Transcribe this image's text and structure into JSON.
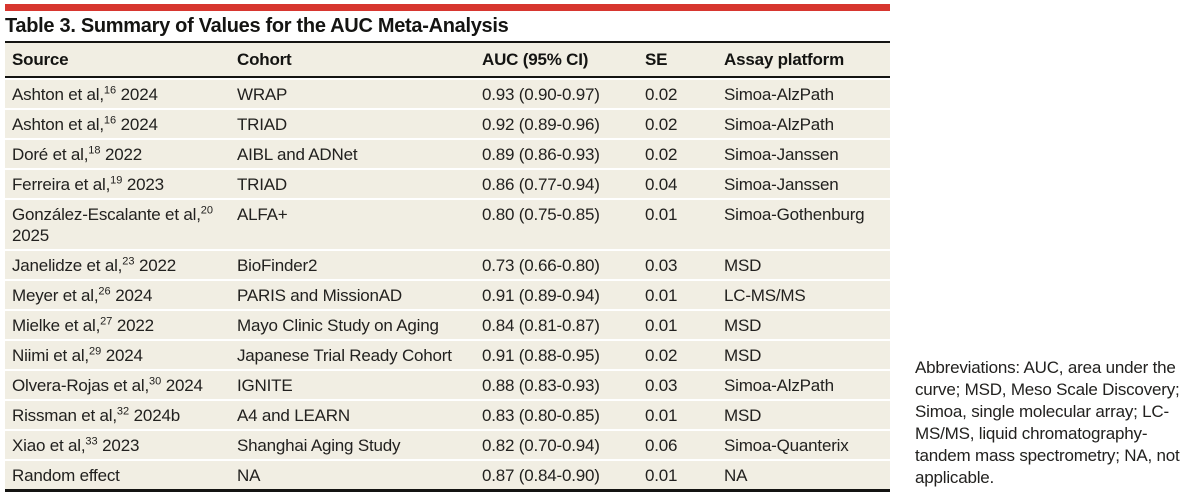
{
  "accent_color": "#d7362f",
  "row_background": "#f1eee3",
  "table": {
    "title": "Table 3. Summary of Values for the AUC Meta-Analysis",
    "columns": [
      "Source",
      "Cohort",
      "AUC (95% CI)",
      "SE",
      "Assay platform"
    ],
    "rows": [
      {
        "source_pre": "Ashton et al,",
        "source_sup": "16",
        "source_post": " 2024",
        "cohort": "WRAP",
        "auc": "0.93 (0.90-0.97)",
        "se": "0.02",
        "assay": "Simoa-AlzPath"
      },
      {
        "source_pre": "Ashton et al,",
        "source_sup": "16",
        "source_post": " 2024",
        "cohort": "TRIAD",
        "auc": "0.92 (0.89-0.96)",
        "se": "0.02",
        "assay": "Simoa-AlzPath"
      },
      {
        "source_pre": "Doré et al,",
        "source_sup": "18",
        "source_post": " 2022",
        "cohort": "AIBL and ADNet",
        "auc": "0.89 (0.86-0.93)",
        "se": "0.02",
        "assay": "Simoa-Janssen"
      },
      {
        "source_pre": "Ferreira et al,",
        "source_sup": "19",
        "source_post": " 2023",
        "cohort": "TRIAD",
        "auc": "0.86 (0.77-0.94)",
        "se": "0.04",
        "assay": "Simoa-Janssen"
      },
      {
        "source_pre": "González-Escalante et al,",
        "source_sup": "20",
        "source_post": " 2025",
        "cohort": "ALFA+",
        "auc": "0.80 (0.75-0.85)",
        "se": "0.01",
        "assay": "Simoa-Gothenburg"
      },
      {
        "source_pre": "Janelidze et al,",
        "source_sup": "23",
        "source_post": " 2022",
        "cohort": "BioFinder2",
        "auc": "0.73 (0.66-0.80)",
        "se": "0.03",
        "assay": "MSD"
      },
      {
        "source_pre": "Meyer et al,",
        "source_sup": "26",
        "source_post": " 2024",
        "cohort": "PARIS and MissionAD",
        "auc": "0.91 (0.89-0.94)",
        "se": "0.01",
        "assay": "LC-MS/MS"
      },
      {
        "source_pre": "Mielke et al,",
        "source_sup": "27",
        "source_post": " 2022",
        "cohort": "Mayo Clinic Study on Aging",
        "auc": "0.84 (0.81-0.87)",
        "se": "0.01",
        "assay": "MSD"
      },
      {
        "source_pre": "Niimi et al,",
        "source_sup": "29",
        "source_post": " 2024",
        "cohort": "Japanese Trial Ready Cohort",
        "auc": "0.91 (0.88-0.95)",
        "se": "0.02",
        "assay": "MSD"
      },
      {
        "source_pre": "Olvera-Rojas et al,",
        "source_sup": "30",
        "source_post": " 2024",
        "cohort": "IGNITE",
        "auc": "0.88 (0.83-0.93)",
        "se": "0.03",
        "assay": "Simoa-AlzPath"
      },
      {
        "source_pre": "Rissman et al,",
        "source_sup": "32",
        "source_post": " 2024b",
        "cohort": "A4 and LEARN",
        "auc": "0.83 (0.80-0.85)",
        "se": "0.01",
        "assay": "MSD"
      },
      {
        "source_pre": "Xiao et al,",
        "source_sup": "33",
        "source_post": " 2023",
        "cohort": "Shanghai Aging Study",
        "auc": "0.82 (0.70-0.94)",
        "se": "0.06",
        "assay": "Simoa-Quanterix"
      },
      {
        "source_pre": "Random effect",
        "source_sup": "",
        "source_post": "",
        "cohort": "NA",
        "auc": "0.87 (0.84-0.90)",
        "se": "0.01",
        "assay": "NA"
      }
    ]
  },
  "footnote": "Abbreviations: AUC, area under the curve; MSD, Meso Scale Discovery; Simoa, single molecular array; LC-MS/MS, liquid chromatography-tandem mass spectrometry; NA, not applicable."
}
